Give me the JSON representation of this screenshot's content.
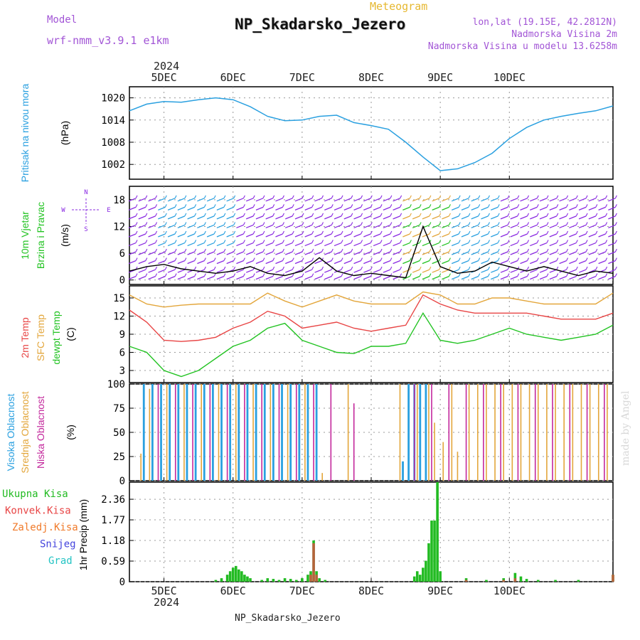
{
  "header": {
    "subtitle": "Meteogram",
    "title": "NP_Skadarsko_Jezero",
    "model_label": "Model",
    "model_name": "wrf-nmm_v3.9.1  e1km",
    "location": "lon,lat (19.15E, 42.2812N)",
    "elevation": "Nadmorska Visina 2m",
    "model_elevation": "Nadmorska Visina u modelu 13.6258m",
    "year": "2024"
  },
  "footer": {
    "station": "NP_Skadarsko_Jezero",
    "credit": "made by Angel"
  },
  "colors": {
    "pressure": "#2aa0e0",
    "t2m": "#e84545",
    "sfc": "#e3a63b",
    "dew": "#22c322",
    "high": "#2aa0e0",
    "mid": "#e3a63b",
    "low": "#c3289c",
    "total": "#22bb22",
    "conv": "#e84545",
    "frozen": "#f07a2a",
    "snow": "#4444dd",
    "hail": "#22c3c3",
    "wind_label": "#22c322",
    "barb_mid": "#8a2be2"
  },
  "chart_data": [
    {
      "type": "line",
      "panel": "pressure",
      "ylabel_parts": [
        "Pritisak na nivou mora",
        "(hPa)"
      ],
      "yticks": [
        1002,
        1008,
        1014,
        1020
      ],
      "ylim": [
        998,
        1023
      ],
      "x_unit": "hours from 2024-12-04 12:00",
      "grid": true,
      "series": [
        {
          "x": [
            0,
            6,
            12,
            18,
            24,
            30,
            36,
            42,
            48,
            54,
            60,
            66,
            72,
            78,
            84,
            90,
            96,
            102,
            108,
            114,
            120,
            126,
            132,
            138,
            144,
            150,
            156,
            162,
            168
          ],
          "values": [
            1016.5,
            1018.3,
            1019.0,
            1018.8,
            1019.5,
            1020.0,
            1019.5,
            1017.6,
            1015.0,
            1013.8,
            1014.0,
            1015.0,
            1015.3,
            1013.3,
            1012.5,
            1011.5,
            1008.0,
            1004.0,
            1000.3,
            1000.8,
            1002.5,
            1005.0,
            1009.0,
            1012.0,
            1014.0,
            1015.0,
            1015.8,
            1016.5,
            1017.8
          ]
        }
      ]
    },
    {
      "type": "line",
      "panel": "wind",
      "ylabel_parts": [
        "10m Vjetar",
        "Brzina i Pravac",
        "(m/s)"
      ],
      "compass": [
        "N",
        "E",
        "S",
        "W"
      ],
      "yticks": [
        0,
        6,
        12,
        18
      ],
      "ylim": [
        -1,
        21
      ],
      "grid": true,
      "series": [
        {
          "x": [
            0,
            6,
            12,
            18,
            24,
            30,
            36,
            42,
            48,
            54,
            60,
            66,
            72,
            78,
            84,
            90,
            96,
            102,
            108,
            114,
            120,
            126,
            132,
            138,
            144,
            150,
            156,
            162,
            168
          ],
          "values": [
            2,
            3,
            3.5,
            2.5,
            2,
            1.5,
            2,
            3,
            1.5,
            1,
            2,
            5,
            2,
            1,
            1.5,
            1,
            0.5,
            12,
            3,
            1.5,
            2,
            4,
            3,
            2,
            3,
            2,
            1,
            2,
            1.5
          ]
        }
      ]
    },
    {
      "type": "line",
      "panel": "temperature",
      "ylabel_parts": [
        "2m Temp",
        "SFC Temp",
        "dewpt Temp",
        "(C)"
      ],
      "yticks": [
        3,
        6,
        9,
        12,
        15
      ],
      "ylim": [
        1,
        17
      ],
      "grid": true,
      "series": [
        {
          "name": "2m Temp",
          "x": [
            0,
            6,
            12,
            18,
            24,
            30,
            36,
            42,
            48,
            54,
            60,
            66,
            72,
            78,
            84,
            90,
            96,
            102,
            108,
            114,
            120,
            126,
            132,
            138,
            144,
            150,
            156,
            162,
            168
          ],
          "values": [
            13,
            11,
            8,
            7.8,
            8,
            8.5,
            10,
            11,
            12.8,
            12,
            10,
            10.5,
            11,
            10,
            9.5,
            10,
            10.5,
            15.5,
            14,
            13,
            12.5,
            12.5,
            12.5,
            12.5,
            12,
            11.5,
            11.5,
            11.5,
            12.5
          ]
        },
        {
          "name": "SFC Temp",
          "x": [
            0,
            6,
            12,
            18,
            24,
            30,
            36,
            42,
            48,
            54,
            60,
            66,
            72,
            78,
            84,
            90,
            96,
            102,
            108,
            114,
            120,
            126,
            132,
            138,
            144,
            150,
            156,
            162,
            168
          ],
          "values": [
            15.5,
            14,
            13.5,
            13.8,
            14,
            14,
            14,
            14,
            15.8,
            14.5,
            13.5,
            14.5,
            15.5,
            14.5,
            14,
            14,
            14,
            16,
            15.5,
            14,
            14,
            15,
            15,
            14.5,
            14,
            14,
            14,
            14,
            15.8
          ]
        },
        {
          "name": "dewpt Temp",
          "x": [
            0,
            6,
            12,
            18,
            24,
            30,
            36,
            42,
            48,
            54,
            60,
            66,
            72,
            78,
            84,
            90,
            96,
            102,
            108,
            114,
            120,
            126,
            132,
            138,
            144,
            150,
            156,
            162,
            168
          ],
          "values": [
            7,
            6,
            3,
            2,
            3,
            5,
            7,
            8,
            10,
            10.8,
            8,
            7,
            6,
            5.8,
            7,
            7,
            7.5,
            12.5,
            8,
            7.5,
            8,
            9,
            10,
            9,
            8.5,
            8,
            8.5,
            9,
            10.5
          ]
        }
      ]
    },
    {
      "type": "bar",
      "panel": "clouds",
      "ylabel_parts": [
        "Visoka Oblacnost",
        "Srednja Oblacnost",
        "Niska Oblacnost",
        "(%)"
      ],
      "yticks": [
        0,
        25,
        50,
        75,
        100
      ],
      "ylim": [
        0,
        100
      ],
      "grid": true,
      "series": [
        {
          "name": "Visoka Oblacnost",
          "x": [
            5,
            8,
            11,
            14,
            17,
            20,
            23,
            26,
            29,
            32,
            35,
            38,
            41,
            44,
            47,
            50,
            53,
            56,
            59,
            62,
            65,
            95,
            97,
            99,
            101,
            103
          ],
          "values": [
            100,
            100,
            100,
            100,
            100,
            100,
            100,
            100,
            100,
            100,
            100,
            100,
            100,
            100,
            100,
            100,
            100,
            100,
            100,
            100,
            100,
            20,
            100,
            100,
            100,
            100
          ]
        },
        {
          "name": "Srednja Oblacnost",
          "x": [
            4,
            7,
            13,
            19,
            25,
            31,
            37,
            43,
            49,
            55,
            61,
            67,
            76,
            94,
            100,
            104,
            106,
            109,
            112,
            114,
            118,
            121,
            124,
            127,
            130,
            133,
            136,
            139,
            142,
            145,
            148,
            151,
            154,
            157,
            160,
            163,
            166
          ],
          "values": [
            28,
            95,
            100,
            100,
            100,
            100,
            100,
            100,
            100,
            100,
            100,
            8,
            100,
            100,
            100,
            100,
            60,
            40,
            100,
            30,
            100,
            100,
            100,
            100,
            100,
            100,
            100,
            100,
            100,
            100,
            100,
            100,
            100,
            100,
            100,
            100,
            100
          ]
        },
        {
          "name": "Niska Oblacnost",
          "x": [
            10,
            16,
            22,
            28,
            34,
            40,
            46,
            52,
            58,
            64,
            70,
            78,
            99,
            105,
            111,
            117,
            123,
            129,
            135,
            141,
            147,
            153,
            159,
            165
          ],
          "values": [
            100,
            100,
            100,
            100,
            100,
            100,
            100,
            100,
            100,
            100,
            100,
            80,
            100,
            100,
            100,
            100,
            100,
            100,
            100,
            100,
            100,
            100,
            100,
            100
          ]
        }
      ]
    },
    {
      "type": "bar",
      "panel": "precipitation",
      "ylabel_parts": [
        "1hr Precip",
        "(mm)"
      ],
      "legend": [
        "Ukupna Kisa",
        "Konvek.Kisa",
        "Zaledj.Kisa",
        "Snijeg",
        "Grad"
      ],
      "yticks": [
        0,
        0.59,
        1.18,
        1.77,
        2.36
      ],
      "ylim": [
        0,
        2.85
      ],
      "grid": true,
      "series": [
        {
          "name": "Ukupna Kisa",
          "x": [
            30,
            32,
            34,
            35,
            36,
            37,
            38,
            39,
            40,
            41,
            42,
            46,
            48,
            50,
            52,
            54,
            56,
            58,
            60,
            62,
            63,
            64,
            65,
            66,
            68,
            99,
            100,
            101,
            102,
            103,
            104,
            105,
            106,
            107,
            108,
            117,
            124,
            130,
            134,
            136,
            138,
            142,
            148,
            156,
            168
          ],
          "values": [
            0.05,
            0.1,
            0.2,
            0.3,
            0.4,
            0.45,
            0.35,
            0.3,
            0.2,
            0.15,
            0.1,
            0.05,
            0.1,
            0.08,
            0.05,
            0.1,
            0.08,
            0.05,
            0.1,
            0.2,
            0.3,
            1.18,
            0.3,
            0.1,
            0.05,
            0.15,
            0.3,
            0.2,
            0.4,
            0.6,
            1.1,
            1.75,
            1.75,
            2.85,
            0.3,
            0.1,
            0.05,
            0.1,
            0.25,
            0.15,
            0.08,
            0.05,
            0.05,
            0.05,
            0.2
          ]
        },
        {
          "name": "Konvek.Kisa",
          "x": [
            63,
            64,
            65,
            117,
            130,
            134,
            168
          ],
          "values": [
            0.2,
            1.1,
            0.2,
            0.05,
            0.05,
            0.1,
            0.2
          ]
        }
      ]
    }
  ],
  "xaxis": {
    "days": [
      "5DEC",
      "6DEC",
      "7DEC",
      "8DEC",
      "9DEC",
      "10DEC"
    ],
    "day_hours": [
      12,
      36,
      60,
      84,
      108,
      132
    ]
  }
}
